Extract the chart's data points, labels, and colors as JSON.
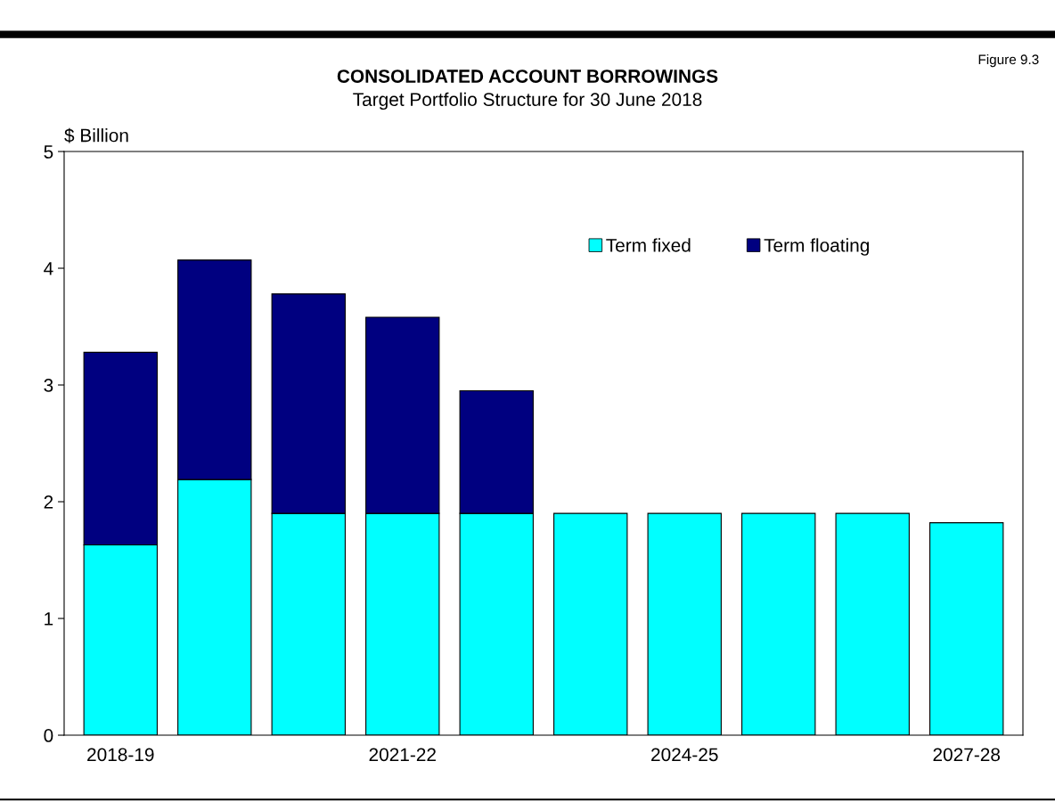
{
  "chart_data": {
    "type": "bar",
    "title": "CONSOLIDATED ACCOUNT BORROWINGS",
    "subtitle": "Target Portfolio Structure for 30 June 2018",
    "ylabel": "$ Billion",
    "annotations": [
      "Figure 9.3"
    ],
    "categories": [
      "2018-19",
      null,
      null,
      "2021-22",
      null,
      null,
      "2024-25",
      null,
      null,
      "2027-28"
    ],
    "stacked": true,
    "series": [
      {
        "name": "Term fixed",
        "color": "#00ffff",
        "values": [
          1.63,
          2.19,
          1.9,
          1.9,
          1.9,
          1.9,
          1.9,
          1.9,
          1.9,
          1.82
        ]
      },
      {
        "name": "Term floating",
        "color": "#000080",
        "values": [
          1.65,
          1.88,
          1.88,
          1.68,
          1.05,
          null,
          null,
          null,
          null,
          null
        ]
      }
    ],
    "ylim": [
      0,
      5
    ],
    "yticks": [
      0,
      1,
      2,
      3,
      4,
      5
    ],
    "grid": false,
    "legend": "top right"
  }
}
